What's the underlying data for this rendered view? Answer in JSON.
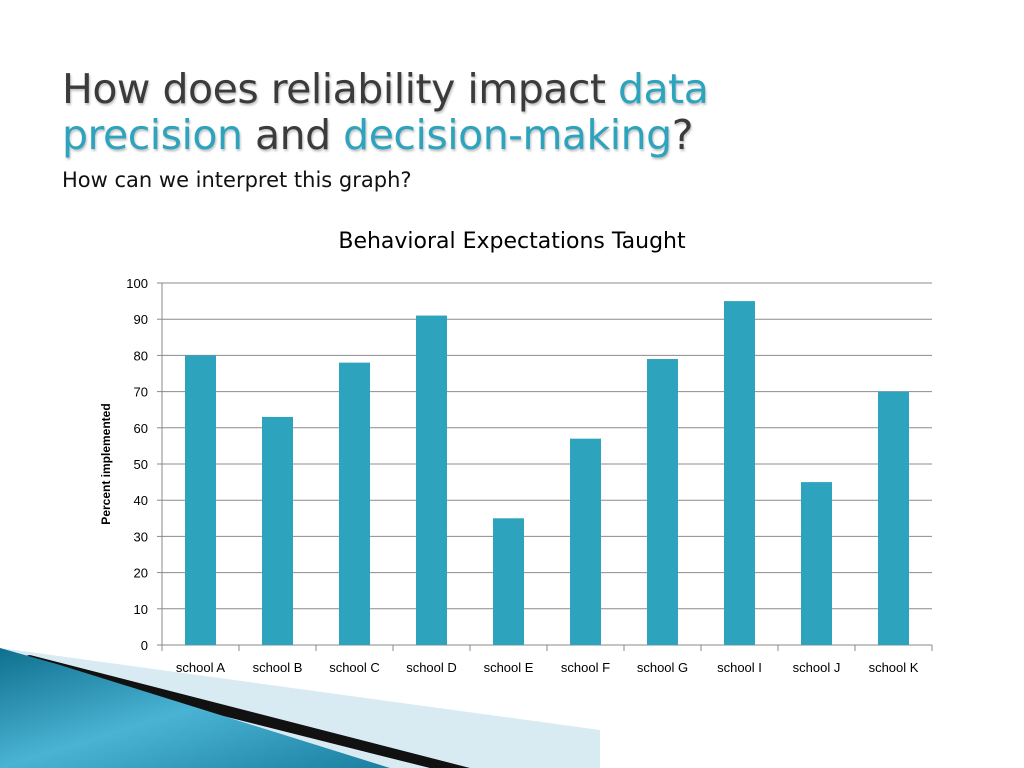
{
  "slide": {
    "title_parts": [
      "How does reliability impact ",
      "data",
      " ",
      "precision",
      " and ",
      "decision-making",
      "?"
    ],
    "subtitle": "How can we interpret this graph?"
  },
  "colors": {
    "bar": "#2ea3bd",
    "accent": "#2ea3bd",
    "grid": "#8c8c8c"
  },
  "chart_data": {
    "type": "bar",
    "title": "Behavioral Expectations Taught",
    "xlabel": "",
    "ylabel": "Percent implemented",
    "categories": [
      "school A",
      "school B",
      "school C",
      "school D",
      "school E",
      "school F",
      "school G",
      "school I",
      "school J",
      "school K"
    ],
    "values": [
      80,
      63,
      78,
      91,
      35,
      57,
      79,
      95,
      45,
      70
    ],
    "ylim": [
      0,
      100
    ],
    "yticks": [
      0,
      10,
      20,
      30,
      40,
      50,
      60,
      70,
      80,
      90,
      100
    ],
    "grid": true,
    "legend": "none"
  }
}
